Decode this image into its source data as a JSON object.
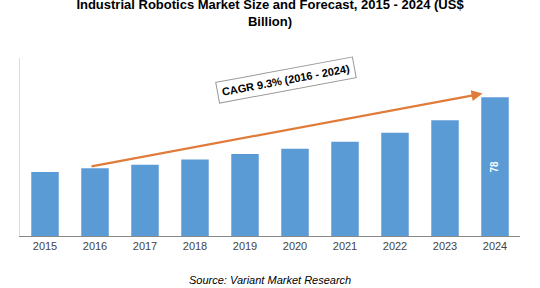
{
  "chart_data": {
    "type": "bar",
    "title": "Industrial Robotics Market Size and Forecast, 2015 - 2024 (US$\nBillion)",
    "categories": [
      "2015",
      "2016",
      "2017",
      "2018",
      "2019",
      "2020",
      "2021",
      "2022",
      "2023",
      "2024"
    ],
    "values": [
      36,
      38,
      40,
      43,
      46,
      49,
      53,
      58,
      65,
      78
    ],
    "color": "#5b9bd5",
    "ylim": [
      0,
      100
    ],
    "grid": false,
    "tick_labels": "x",
    "arrow": {
      "from": "2016",
      "to": "2024",
      "color": "#e07b39"
    },
    "annotations": [
      {
        "text": "CAGR 9.3% (2016 - 2024)"
      },
      {
        "text": "78",
        "category": "2024"
      }
    ],
    "source": "Source: Variant Market Research"
  }
}
